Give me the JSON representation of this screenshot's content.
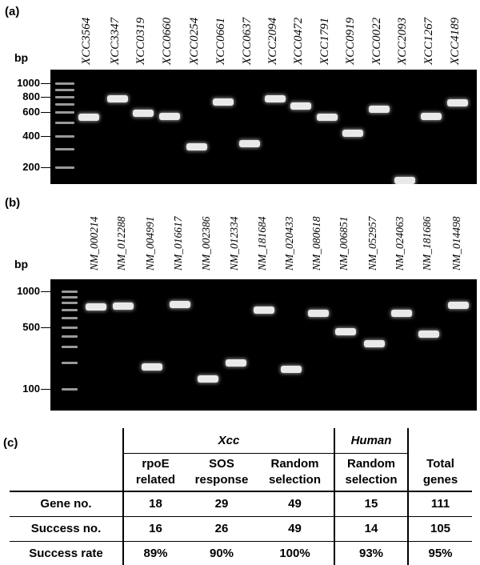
{
  "panel_a": {
    "label": "(a)",
    "unit": "bp",
    "ladder_labels": [
      "1000",
      "800",
      "600",
      "400",
      "200"
    ],
    "lanes": [
      "XCC3564",
      "XCC3347",
      "XCC0319",
      "XCC0660",
      "XCC0254",
      "XCC0661",
      "XCC0637",
      "XCC2094",
      "XCC0472",
      "XCC1791",
      "XCC0919",
      "XCC0022",
      "XCC2093",
      "XCC1267",
      "XCC4189"
    ],
    "band_sizes_bp": [
      550,
      780,
      590,
      560,
      320,
      730,
      340,
      780,
      680,
      550,
      420,
      640,
      150,
      560,
      720
    ]
  },
  "panel_b": {
    "label": "(b)",
    "unit": "bp",
    "ladder_labels": [
      "1000",
      "500",
      "100"
    ],
    "lanes": [
      "NM_000214",
      "NM_012288",
      "NM_004991",
      "NM_016617",
      "NM_002386",
      "NM_012334",
      "NM_181684",
      "NM_020433",
      "NM_080618",
      "NM_006851",
      "NM_052957",
      "NM_024063",
      "NM_181686",
      "NM_014498"
    ],
    "band_sizes_bp": [
      750,
      760,
      180,
      780,
      130,
      200,
      700,
      170,
      660,
      450,
      330,
      660,
      420,
      770
    ]
  },
  "panel_c": {
    "label": "(c)",
    "groups": {
      "xcc": "Xcc",
      "human": "Human"
    },
    "columns": [
      [
        "rpoE",
        "related"
      ],
      [
        "SOS",
        "response"
      ],
      [
        "Random",
        "selection"
      ],
      [
        "Random",
        "selection"
      ],
      [
        "Total",
        "genes"
      ]
    ],
    "rows": [
      {
        "label": "Gene no.",
        "values": [
          "18",
          "29",
          "49",
          "15",
          "111"
        ]
      },
      {
        "label": "Success no.",
        "values": [
          "16",
          "26",
          "49",
          "14",
          "105"
        ]
      },
      {
        "label": "Success rate",
        "values": [
          "89%",
          "90%",
          "100%",
          "93%",
          "95%"
        ]
      }
    ]
  }
}
